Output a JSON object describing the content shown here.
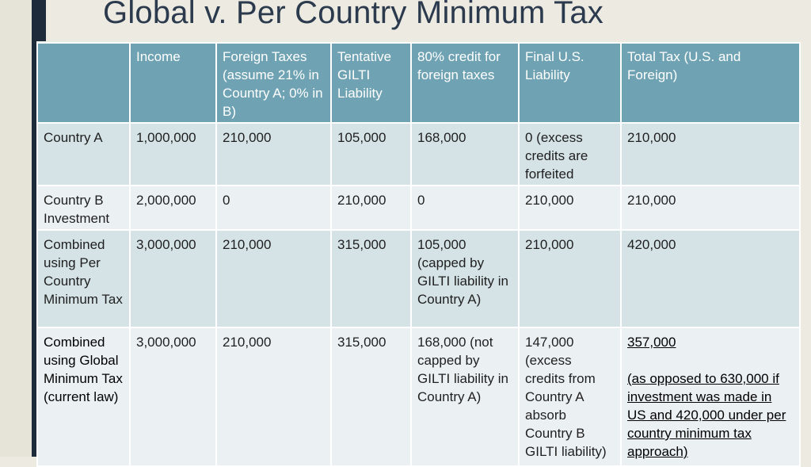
{
  "title": "Global v. Per Country Minimum Tax",
  "table": {
    "headers": [
      "",
      "Income",
      "Foreign Taxes (assume 21% in Country A; 0% in B)",
      "Tentative GILTI Liability",
      "80% credit for foreign taxes",
      "Final U.S. Liability",
      "Total Tax (U.S. and Foreign)"
    ],
    "rows": [
      [
        "Country A",
        "1,000,000",
        "210,000",
        "105,000",
        "168,000",
        "0 (excess credits are forfeited",
        "210,000"
      ],
      [
        "Country B Investment",
        "2,000,000",
        "0",
        "210,000",
        "0",
        "210,000",
        "210,000"
      ],
      [
        "Combined using Per Country Minimum Tax",
        "3,000,000",
        "210,000",
        "315,000",
        "105,000 (capped by GILTI liability in Country A)",
        "210,000",
        "420,000"
      ],
      [
        "Combined using Global Minimum Tax (current law)",
        "3,000,000",
        "210,000",
        "315,000",
        "168,000 (not capped by GILTI liability in Country A)",
        "147,000 (excess credits from Country A absorb Country B GILTI liability)",
        "357,000"
      ]
    ],
    "total_note": "(as opposed to 630,000 if investment was made in US and 420,000 under per country minimum tax approach)"
  },
  "colors": {
    "header_bg": "#6FA3B3",
    "row_dark": "#D5E3E7",
    "row_light": "#EBF1F3",
    "title": "#2B3A4D",
    "accent_bar": "#1E2B3A"
  }
}
